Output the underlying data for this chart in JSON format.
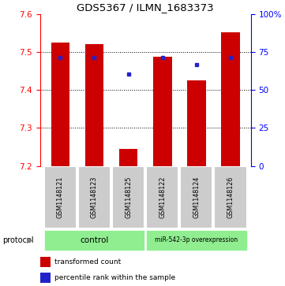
{
  "title": "GDS5367 / ILMN_1683373",
  "samples": [
    "GSM1148121",
    "GSM1148123",
    "GSM1148125",
    "GSM1148122",
    "GSM1148124",
    "GSM1148126"
  ],
  "bar_values": [
    7.525,
    7.522,
    7.245,
    7.488,
    7.425,
    7.552
  ],
  "blue_values": [
    7.487,
    7.487,
    7.443,
    7.487,
    7.468,
    7.487
  ],
  "bar_color": "#cc0000",
  "blue_color": "#2222cc",
  "ylim_left": [
    7.2,
    7.6
  ],
  "ylim_right": [
    0,
    100
  ],
  "yticks_left": [
    7.2,
    7.3,
    7.4,
    7.5,
    7.6
  ],
  "yticks_right": [
    0,
    25,
    50,
    75,
    100
  ],
  "ytick_right_labels": [
    "0",
    "25",
    "50",
    "75",
    "100%"
  ],
  "baseline": 7.2,
  "bar_width": 0.55,
  "legend_items": [
    "transformed count",
    "percentile rank within the sample"
  ],
  "protocol_ctrl_label": "control",
  "protocol_mir_label": "miR-542-3p overexpression",
  "protocol_color": "#90ee90",
  "gray_color": "#cccccc",
  "title_fontsize": 9.5,
  "axis_fontsize": 7.5,
  "sample_fontsize": 5.8,
  "legend_fontsize": 6.5
}
